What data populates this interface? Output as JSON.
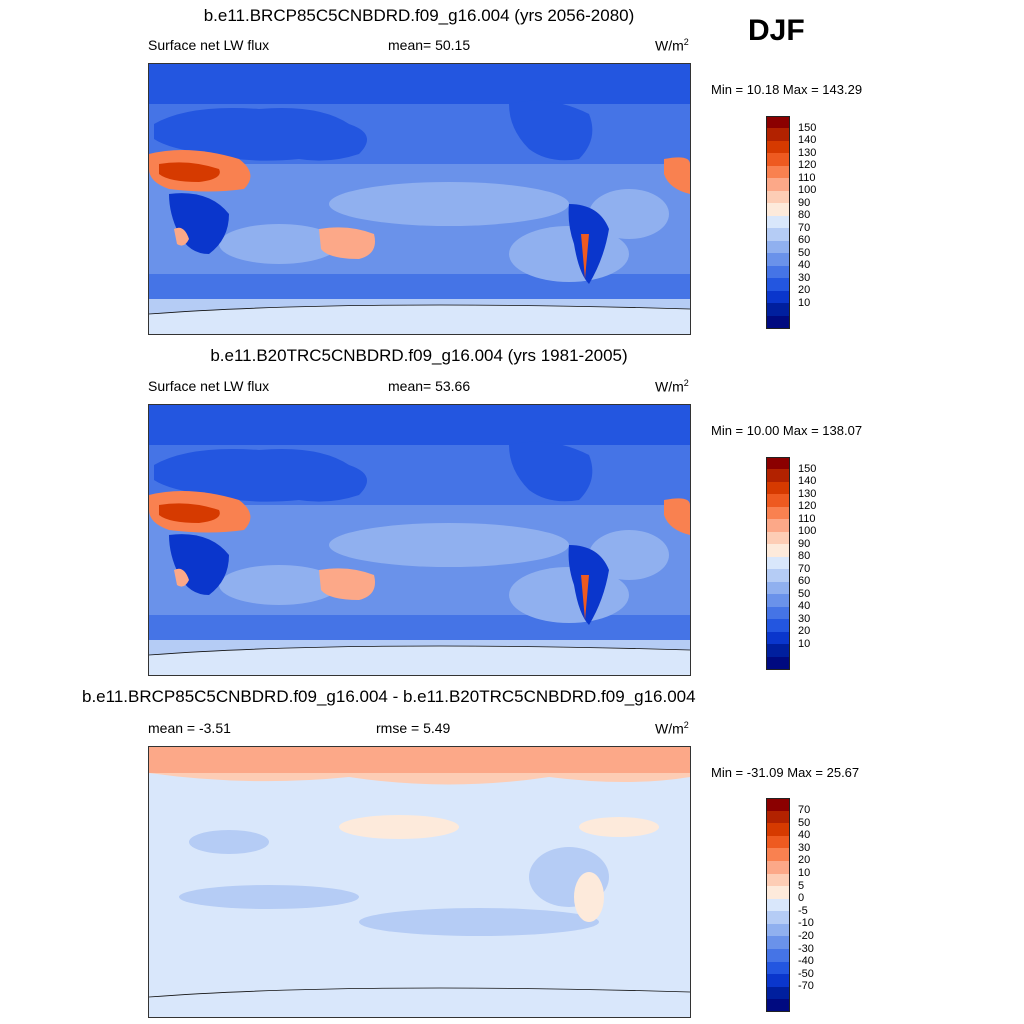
{
  "season": "DJF",
  "panels": [
    {
      "title": "b.e11.BRCP85C5CNBDRD.f09_g16.004 (yrs 2056-2080)",
      "left_label": "Surface net LW flux",
      "center_label": "mean=  50.15",
      "units_base": "W/m",
      "units_exp": "2",
      "minmax": "Min =  10.18 Max = 143.29",
      "colorbar": {
        "colors": [
          "#8b0000",
          "#b22200",
          "#d63a00",
          "#ee5a20",
          "#f98150",
          "#fca888",
          "#fdcdb5",
          "#fdeadb",
          "#d9e7fb",
          "#b5ccf5",
          "#90b0ef",
          "#6a92ea",
          "#4574e6",
          "#2356e0",
          "#0a36cc",
          "#001f9e",
          "#000a80"
        ],
        "labels": [
          "150",
          "140",
          "130",
          "120",
          "110",
          "100",
          "90",
          "80",
          "70",
          "60",
          "50",
          "40",
          "30",
          "20",
          "10"
        ]
      }
    },
    {
      "title": "b.e11.B20TRC5CNBDRD.f09_g16.004 (yrs 1981-2005)",
      "left_label": "Surface net LW flux",
      "center_label": "mean=  53.66",
      "units_base": "W/m",
      "units_exp": "2",
      "minmax": "Min =  10.00 Max = 138.07",
      "colorbar": {
        "colors": [
          "#8b0000",
          "#b22200",
          "#d63a00",
          "#ee5a20",
          "#f98150",
          "#fca888",
          "#fdcdb5",
          "#fdeadb",
          "#d9e7fb",
          "#b5ccf5",
          "#90b0ef",
          "#6a92ea",
          "#4574e6",
          "#2356e0",
          "#0a36cc",
          "#001f9e",
          "#000a80"
        ],
        "labels": [
          "150",
          "140",
          "130",
          "120",
          "110",
          "100",
          "90",
          "80",
          "70",
          "60",
          "50",
          "40",
          "30",
          "20",
          "10"
        ]
      }
    },
    {
      "title": "b.e11.BRCP85C5CNBDRD.f09_g16.004 - b.e11.B20TRC5CNBDRD.f09_g16.004",
      "left_label": "mean =  -3.51",
      "center_label": "rmse =   5.49",
      "units_base": "W/m",
      "units_exp": "2",
      "minmax": "Min = -31.09 Max =  25.67",
      "colorbar": {
        "colors": [
          "#8b0000",
          "#b22200",
          "#d63a00",
          "#ee5a20",
          "#f98150",
          "#fca888",
          "#fdcdb5",
          "#fdeadb",
          "#d9e7fb",
          "#b5ccf5",
          "#90b0ef",
          "#6a92ea",
          "#4574e6",
          "#2356e0",
          "#0a36cc",
          "#001f9e",
          "#000a80"
        ],
        "labels": [
          "70",
          "50",
          "40",
          "30",
          "20",
          "10",
          "5",
          "0",
          "-5",
          "-10",
          "-20",
          "-30",
          "-40",
          "-50",
          "-70"
        ]
      }
    }
  ]
}
